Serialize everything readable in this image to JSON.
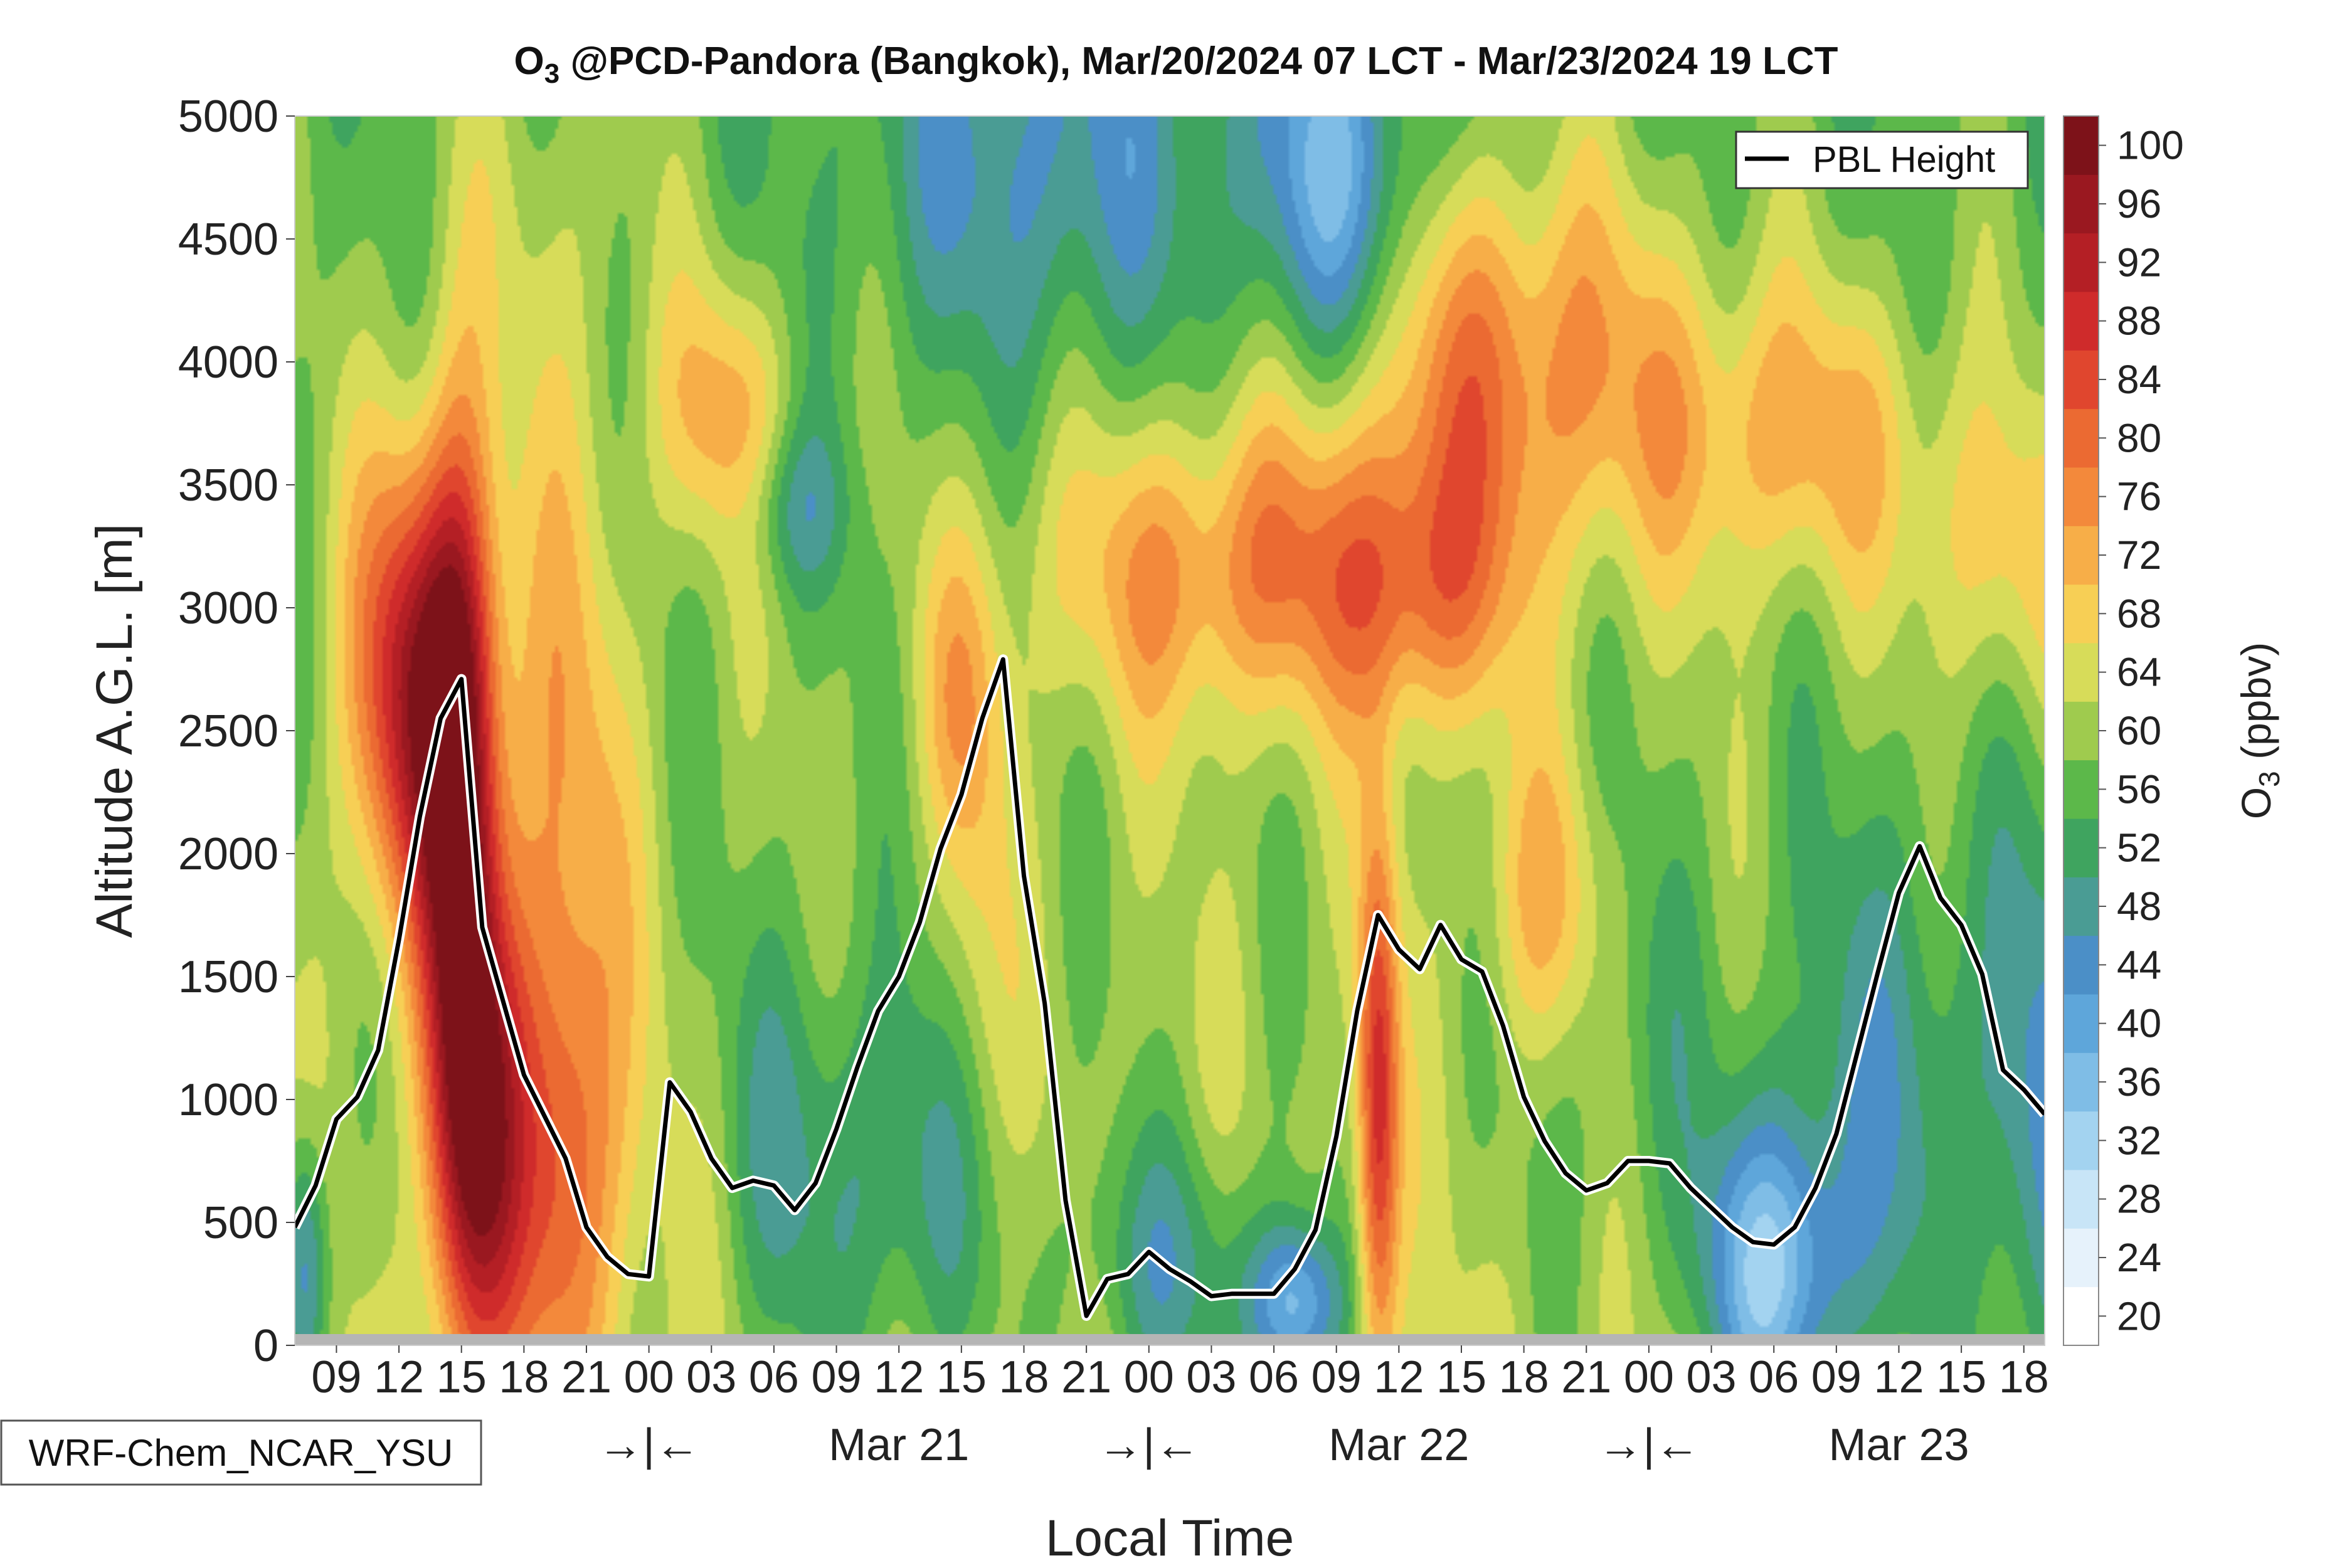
{
  "chart_data": {
    "type": "heatmap",
    "title_prefix": "O",
    "title_subscript": "3",
    "title_rest": " @PCD-Pandora (Bangkok), Mar/20/2024 07 LCT - Mar/23/2024 19 LCT",
    "xlabel": "Local Time",
    "ylabel": "Altitude A.G.L. [m]",
    "colorbar_label_prefix": "O",
    "colorbar_label_subscript": "3",
    "colorbar_label_rest": " (ppbv)",
    "model_label": "WRF-Chem_NCAR_YSU",
    "legend": {
      "label": "PBL Height",
      "placement": "top-right"
    },
    "ylim": [
      0,
      5000
    ],
    "y_ticks": [
      "0",
      "500",
      "1000",
      "1500",
      "2000",
      "2500",
      "3000",
      "3500",
      "4000",
      "4500",
      "5000"
    ],
    "xlim_hours": [
      0,
      84
    ],
    "x_tick_labels": [
      "09",
      "12",
      "15",
      "18",
      "21",
      "00",
      "03",
      "06",
      "09",
      "12",
      "15",
      "18",
      "21",
      "00",
      "03",
      "06",
      "09",
      "12",
      "15",
      "18",
      "21",
      "00",
      "03",
      "06",
      "09",
      "12",
      "15",
      "18"
    ],
    "x_tick_hours": [
      2,
      5,
      8,
      11,
      14,
      17,
      20,
      23,
      26,
      29,
      32,
      35,
      38,
      41,
      44,
      47,
      50,
      53,
      56,
      59,
      62,
      65,
      68,
      71,
      74,
      77,
      80,
      83
    ],
    "day_markers": [
      {
        "hour": 17,
        "label": "→|←"
      },
      {
        "hour": 29,
        "label": "Mar 21"
      },
      {
        "hour": 41,
        "label": "→|←"
      },
      {
        "hour": 53,
        "label": "Mar 22"
      },
      {
        "hour": 65,
        "label": "→|←"
      },
      {
        "hour": 77,
        "label": "Mar 23"
      }
    ],
    "colorbar": {
      "levels": [
        20,
        24,
        28,
        32,
        36,
        40,
        44,
        48,
        52,
        56,
        60,
        64,
        68,
        72,
        76,
        80,
        84,
        88,
        92,
        96,
        100
      ],
      "tick_labels": [
        "20",
        "24",
        "28",
        "32",
        "36",
        "40",
        "44",
        "48",
        "52",
        "56",
        "60",
        "64",
        "68",
        "72",
        "76",
        "80",
        "84",
        "88",
        "92",
        "96",
        "100"
      ],
      "colors": [
        "#ffffff",
        "#e6f2fb",
        "#c8e5f7",
        "#a3d3f0",
        "#7fbde6",
        "#5ea6da",
        "#4b8fc7",
        "#4a9c94",
        "#3fa45f",
        "#5cb84a",
        "#9fcb4e",
        "#d7dc59",
        "#f7cf55",
        "#f7ae48",
        "#f3893b",
        "#eb6a32",
        "#e0462e",
        "#cf2b2b",
        "#b41f25",
        "#9a1820",
        "#7d1219"
      ]
    },
    "pbl_height": {
      "x_hours": [
        0,
        1,
        2,
        3,
        4,
        5,
        6,
        7,
        8,
        9,
        10,
        11,
        12,
        13,
        14,
        15,
        16,
        17,
        18,
        19,
        20,
        21,
        22,
        23,
        24,
        25,
        26,
        27,
        28,
        29,
        30,
        31,
        32,
        33,
        34,
        35,
        36,
        37,
        38,
        39,
        40,
        41,
        42,
        43,
        44,
        45,
        46,
        47,
        48,
        49,
        50,
        51,
        52,
        53,
        54,
        55,
        56,
        57,
        58,
        59,
        60,
        61,
        62,
        63,
        64,
        65,
        66,
        67,
        68,
        69,
        70,
        71,
        72,
        73,
        74,
        75,
        76,
        77,
        78,
        79,
        80,
        81,
        82,
        83,
        84
      ],
      "y_m": [
        480,
        650,
        920,
        1010,
        1200,
        1650,
        2150,
        2550,
        2710,
        1700,
        1400,
        1100,
        930,
        760,
        480,
        360,
        290,
        280,
        1070,
        950,
        760,
        640,
        670,
        650,
        550,
        660,
        880,
        1130,
        1360,
        1500,
        1720,
        2020,
        2240,
        2550,
        2790,
        1910,
        1390,
        590,
        120,
        270,
        290,
        380,
        310,
        260,
        200,
        210,
        210,
        210,
        310,
        470,
        850,
        1360,
        1750,
        1610,
        1530,
        1710,
        1570,
        1520,
        1300,
        1010,
        830,
        700,
        630,
        660,
        750,
        750,
        740,
        640,
        560,
        480,
        420,
        410,
        480,
        640,
        860,
        1190,
        1520,
        1840,
        2030,
        1820,
        1710,
        1510,
        1120,
        1040,
        940
      ]
    }
  }
}
